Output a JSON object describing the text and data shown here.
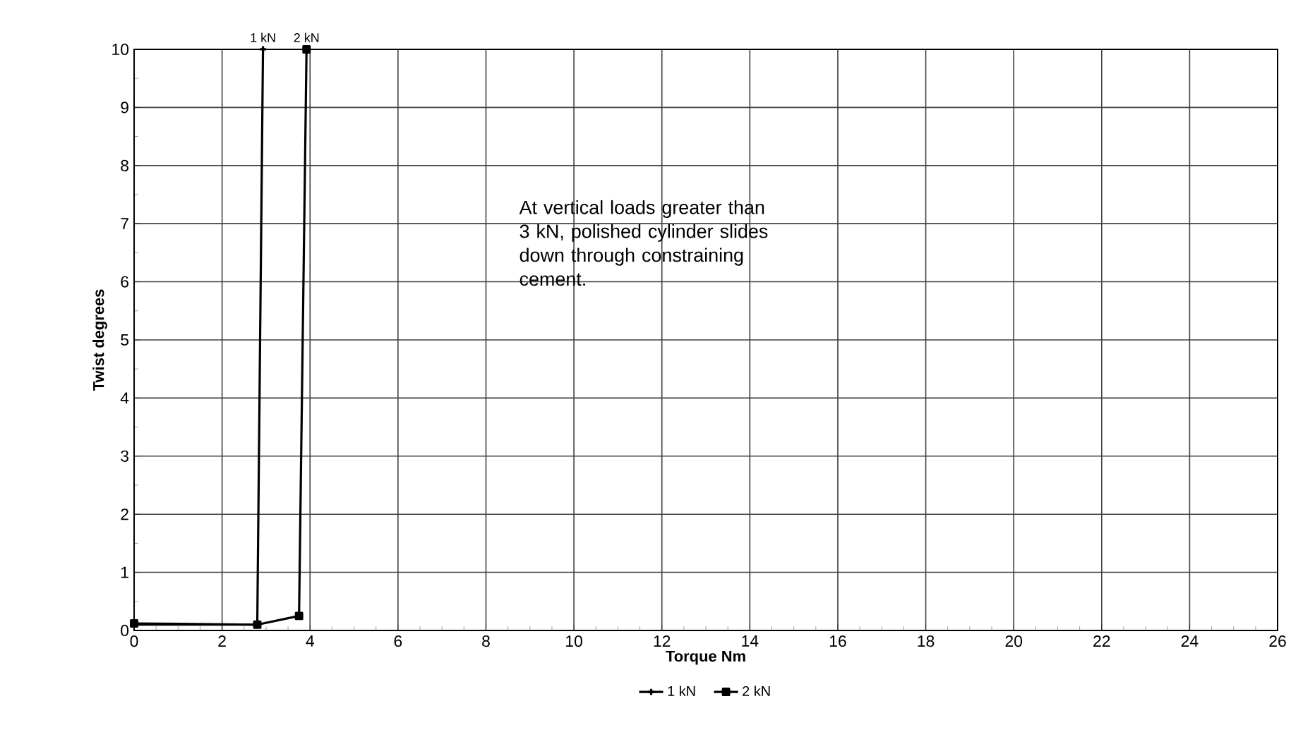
{
  "chart_data": {
    "type": "line",
    "xlabel": "Torque Nm",
    "ylabel": "Twist degrees",
    "xlim": [
      0,
      26
    ],
    "xticks": [
      0,
      2,
      4,
      6,
      8,
      10,
      12,
      14,
      16,
      18,
      20,
      22,
      24,
      26
    ],
    "ylim": [
      0,
      10
    ],
    "yticks": [
      0,
      1,
      2,
      3,
      4,
      5,
      6,
      7,
      8,
      9,
      10
    ],
    "grid": true,
    "legend": "bottom",
    "line_style": "solid",
    "series": [
      {
        "name": "1 kN",
        "color": "#000000",
        "marker": "cross",
        "x": [
          0,
          2.8,
          2.93
        ],
        "values": [
          0.1,
          0.1,
          10
        ]
      },
      {
        "name": "2 kN",
        "color": "#000000",
        "marker": "square",
        "x": [
          0,
          2.8,
          3.75,
          3.92
        ],
        "values": [
          0.12,
          0.1,
          0.25,
          10
        ]
      }
    ],
    "annotations": [
      {
        "text": "1 kN",
        "x": 2.93,
        "y": 10
      },
      {
        "text": "2 kN",
        "x": 3.92,
        "y": 10
      },
      "At vertical loads greater than 3 kN, polished cylinder slides down through constraining cement."
    ]
  }
}
